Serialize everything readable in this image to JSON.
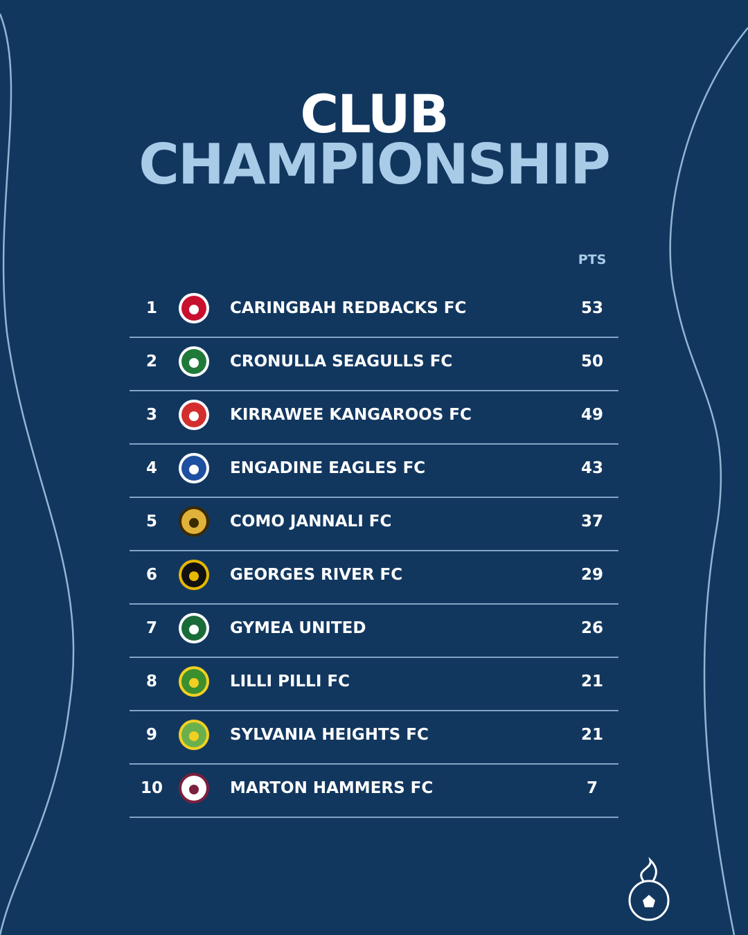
{
  "header": {
    "title_line1": "CLUB",
    "title_line2": "CHAMPIONSHIP"
  },
  "table": {
    "columns": [
      "PTS"
    ],
    "rows": [
      [
        "1",
        "CARINGBAH REDBACKS FC",
        "53"
      ],
      [
        "2",
        "CRONULLA SEAGULLS FC",
        "50"
      ],
      [
        "3",
        "KIRRAWEE KANGAROOS FC",
        "49"
      ],
      [
        "4",
        "ENGADINE EAGLES FC",
        "43"
      ],
      [
        "5",
        "COMO JANNALI FC",
        "37"
      ],
      [
        "6",
        "GEORGES RIVER FC",
        "29"
      ],
      [
        "7",
        "GYMEA UNITED",
        "26"
      ],
      [
        "8",
        "LILLI PILLI FC",
        "21"
      ],
      [
        "9",
        "SYLVANIA HEIGHTS FC",
        "21"
      ],
      [
        "10",
        "MARTON HAMMERS FC",
        "7"
      ]
    ]
  }
}
